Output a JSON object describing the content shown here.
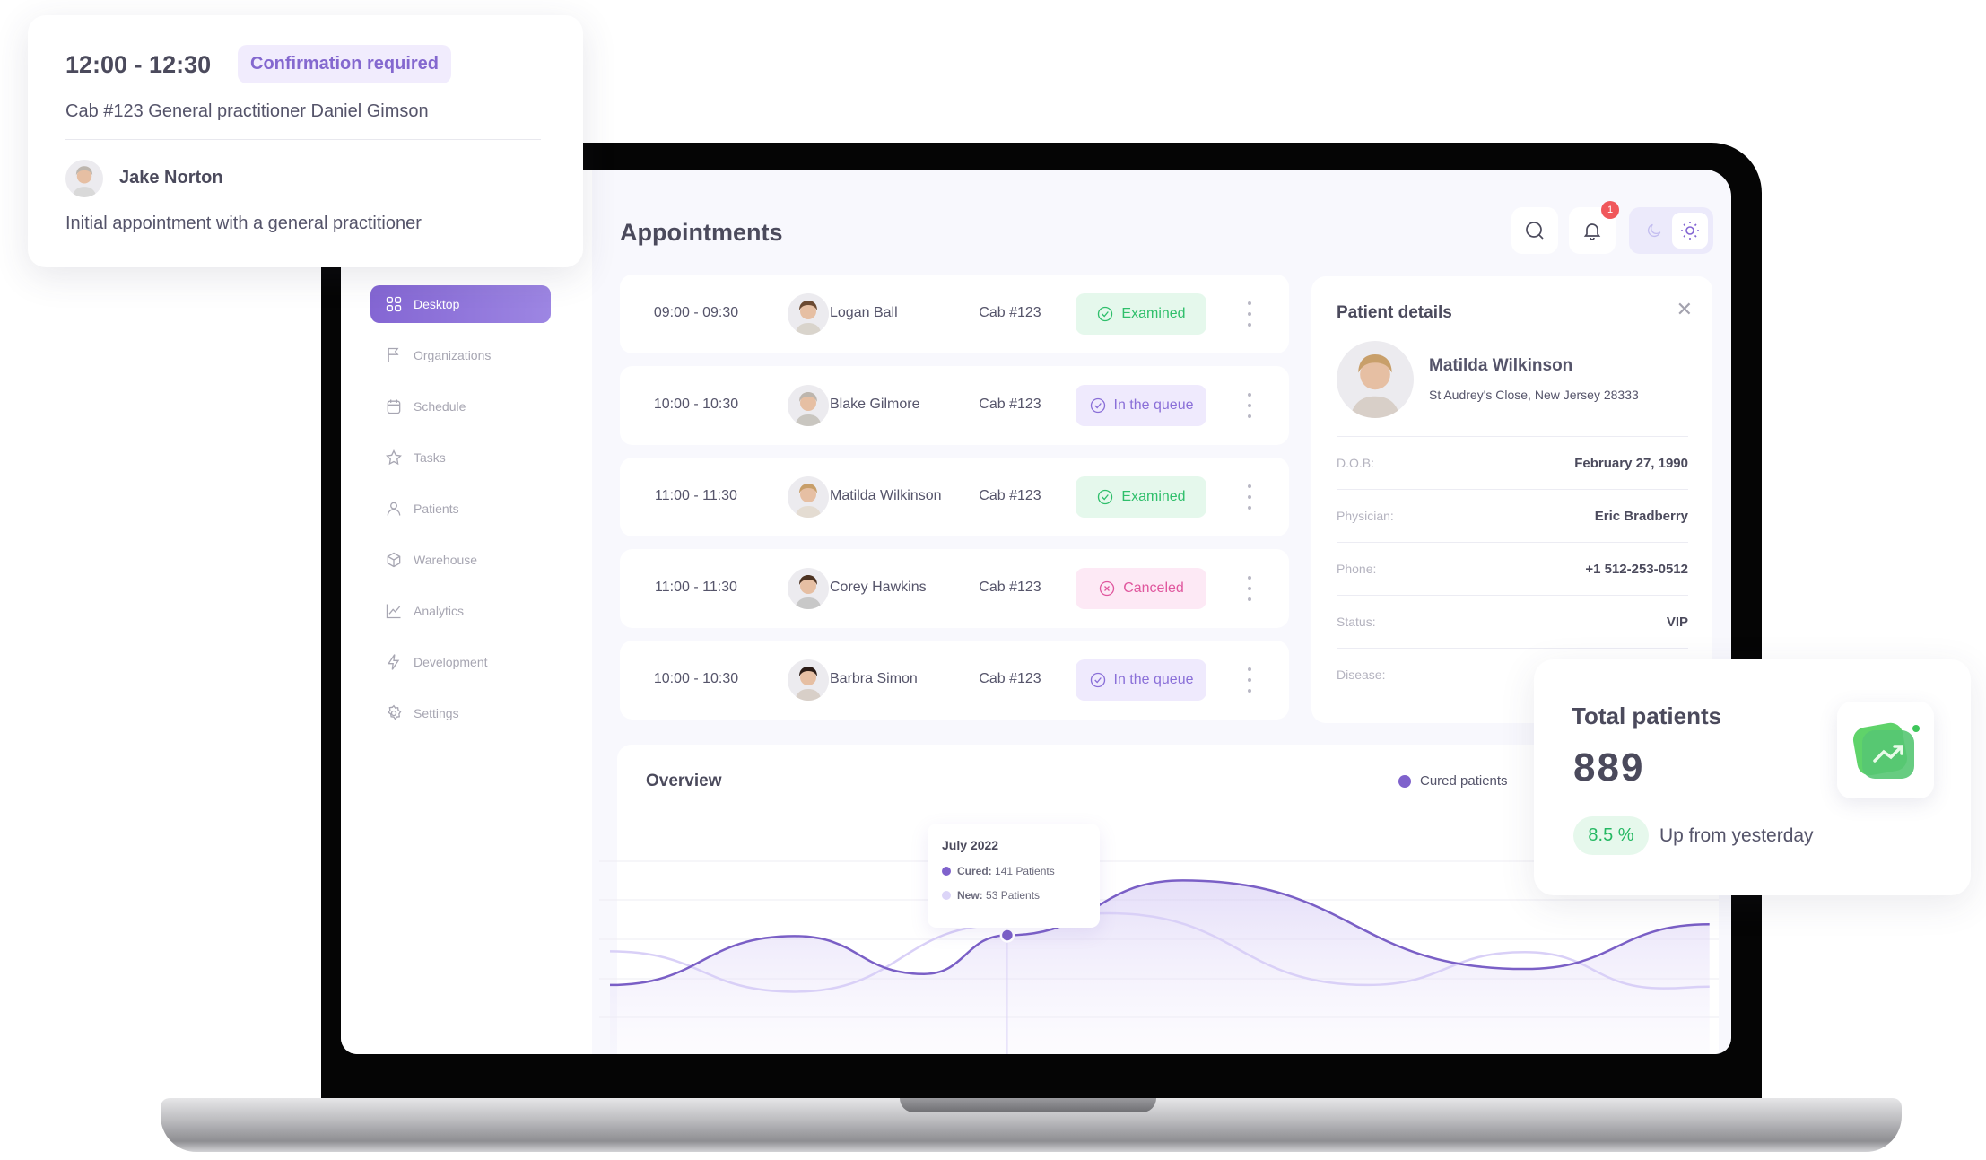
{
  "colors": {
    "accent": "#8466d3",
    "examined": "#2fbf6b",
    "queue": "#8a6fd8",
    "canceled": "#e0579e"
  },
  "sidebar": {
    "items": [
      {
        "label": "Desktop",
        "icon": "grid-icon",
        "active": true
      },
      {
        "label": "Organizations",
        "icon": "flag-icon"
      },
      {
        "label": "Schedule",
        "icon": "calendar-icon"
      },
      {
        "label": "Tasks",
        "icon": "star-icon"
      },
      {
        "label": "Patients",
        "icon": "user-icon"
      },
      {
        "label": "Warehouse",
        "icon": "box-icon"
      },
      {
        "label": "Analytics",
        "icon": "chart-line-icon"
      },
      {
        "label": "Development",
        "icon": "bolt-icon"
      },
      {
        "label": "Settings",
        "icon": "gear-icon"
      }
    ]
  },
  "header": {
    "title": "Appointments",
    "notification_count": "1",
    "theme": "light"
  },
  "appointments": [
    {
      "time": "09:00 - 09:30",
      "name": "Logan Ball",
      "cab": "Cab #123",
      "status": "Examined",
      "kind": "examined"
    },
    {
      "time": "10:00 - 10:30",
      "name": "Blake Gilmore",
      "cab": "Cab #123",
      "status": "In the queue",
      "kind": "queue"
    },
    {
      "time": "11:00 - 11:30",
      "name": "Matilda Wilkinson",
      "cab": "Cab #123",
      "status": "Examined",
      "kind": "examined"
    },
    {
      "time": "11:00 - 11:30",
      "name": "Corey Hawkins",
      "cab": "Cab #123",
      "status": "Canceled",
      "kind": "canceled"
    },
    {
      "time": "10:00 - 10:30",
      "name": "Barbra Simon",
      "cab": "Cab #123",
      "status": "In the queue",
      "kind": "queue"
    }
  ],
  "patient_details": {
    "title": "Patient details",
    "name": "Matilda Wilkinson",
    "address": "St Audrey's Close, New Jersey 28333",
    "fields": [
      {
        "label": "D.O.B:",
        "value": "February 27, 1990"
      },
      {
        "label": "Physician:",
        "value": "Eric Bradberry"
      },
      {
        "label": "Phone:",
        "value": "+1 512-253-0512"
      },
      {
        "label": "Status:",
        "value": "VIP"
      },
      {
        "label": "Disease:",
        "value": ""
      }
    ]
  },
  "overview": {
    "title": "Overview",
    "legend": "Cured patients",
    "tooltip": {
      "title": "July 2022",
      "cured_label": "Cured:",
      "cured_value": "141 Patients",
      "new_label": "New:",
      "new_value": "53 Patients"
    }
  },
  "chart_data": {
    "type": "area",
    "grid": true,
    "xlim": [
      0,
      12
    ],
    "ylim": [
      0,
      250
    ],
    "series": [
      {
        "name": "Cured patients",
        "points": [
          [
            0,
            82
          ],
          [
            2.0,
            140
          ],
          [
            3.4,
            95
          ],
          [
            4.3,
            141
          ],
          [
            6.2,
            206
          ],
          [
            9.9,
            101
          ],
          [
            11.9,
            154
          ]
        ]
      },
      {
        "points": [
          [
            0,
            122
          ],
          [
            2.0,
            74
          ],
          [
            4.3,
            154
          ],
          [
            5.4,
            167
          ],
          [
            8.2,
            82
          ],
          [
            9.9,
            121
          ],
          [
            11.4,
            78
          ],
          [
            11.9,
            80
          ]
        ]
      }
    ],
    "highlight": {
      "x": 4.3,
      "y": 141
    }
  },
  "popup": {
    "time": "12:00 - 12:30",
    "badge": "Confirmation required",
    "cab": "Cab #123  General practitioner Daniel Gimson",
    "patient": "Jake Norton",
    "description": "Initial appointment with a general practitioner"
  },
  "total_patients": {
    "title": "Total patients",
    "value": "889",
    "change": "8.5 %",
    "change_label": "Up from yesterday"
  }
}
